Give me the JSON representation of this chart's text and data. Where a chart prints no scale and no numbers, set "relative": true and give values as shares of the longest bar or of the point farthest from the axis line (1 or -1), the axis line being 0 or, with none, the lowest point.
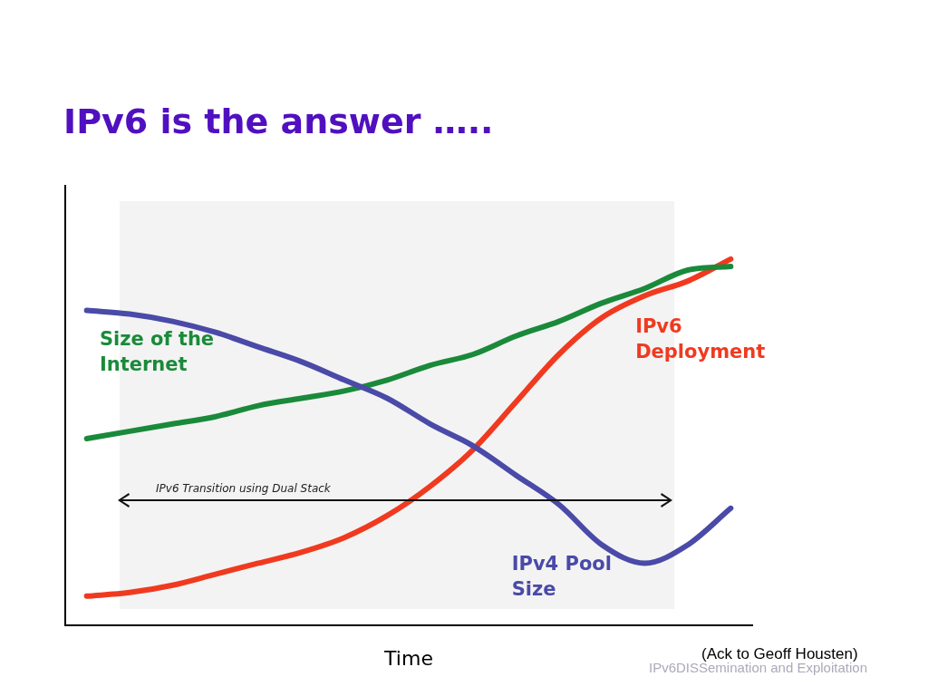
{
  "chart_data": {
    "type": "line",
    "title": "IPv6 is the answer …..",
    "xlabel": "Time",
    "relative": true,
    "legend": false,
    "grid": false,
    "marker": "none",
    "line_style": "solid",
    "categories": [
      null,
      null,
      null,
      null,
      null,
      null,
      null,
      null,
      null,
      null,
      null,
      null,
      null,
      null,
      null,
      null
    ],
    "series": [
      {
        "name": "IPv4 Pool Size",
        "color": "#4a4aa8",
        "values": [
          0.86,
          0.85,
          0.83,
          0.8,
          0.76,
          0.72,
          0.67,
          0.62,
          0.55,
          0.49,
          0.41,
          0.33,
          0.22,
          0.17,
          0.22,
          0.32
        ]
      },
      {
        "name": "Size of the Internet",
        "color": "#1a8a3a",
        "values": [
          0.51,
          0.53,
          0.55,
          0.57,
          0.6,
          0.62,
          0.64,
          0.67,
          0.71,
          0.74,
          0.79,
          0.83,
          0.88,
          0.92,
          0.97,
          0.98
        ]
      },
      {
        "name": "IPv6 Deployment",
        "color": "#f03a20",
        "values": [
          0.08,
          0.09,
          0.11,
          0.14,
          0.17,
          0.2,
          0.24,
          0.3,
          0.38,
          0.48,
          0.61,
          0.74,
          0.84,
          0.9,
          0.94,
          1
        ]
      }
    ],
    "annotations": [
      "IPv6 Transition using Dual Stack",
      "(Ack to Geoff Housten)",
      "IPv6DISSemination and Exploitation"
    ]
  }
}
